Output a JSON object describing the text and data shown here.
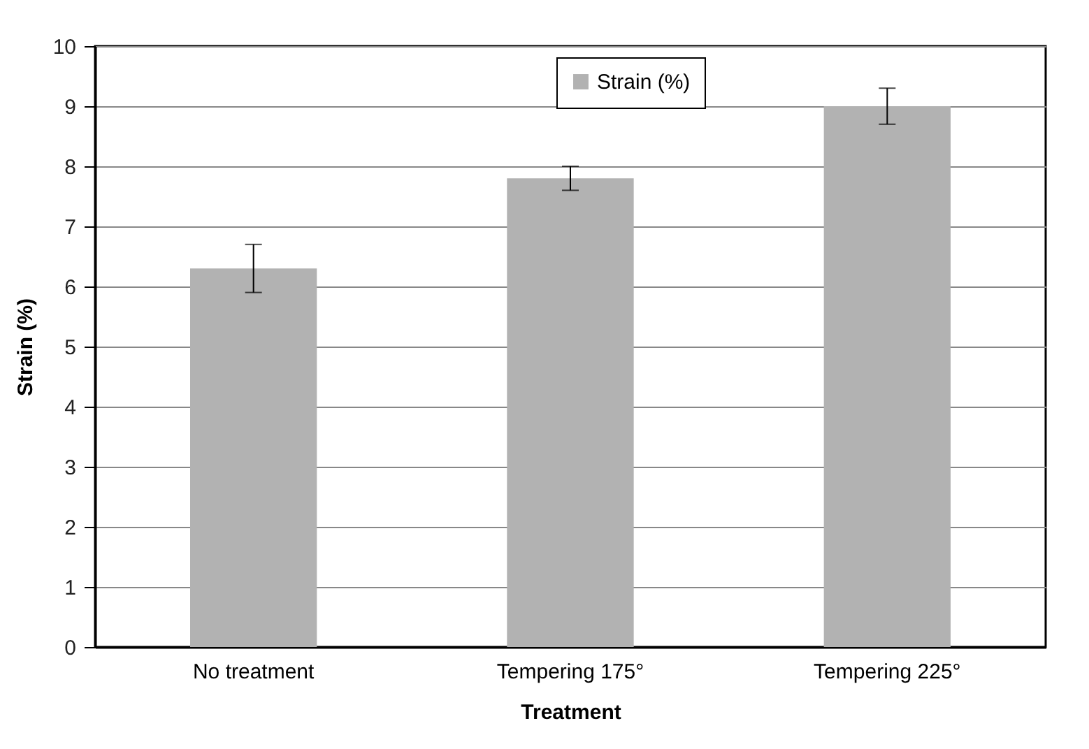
{
  "chart_data": {
    "type": "bar",
    "xlabel": "Treatment",
    "ylabel": "Strain (%)",
    "categories": [
      "No treatment",
      "Tempering 175°",
      "Tempering 225°"
    ],
    "series": [
      {
        "name": "Strain (%)",
        "color": "#b2b2b2",
        "values": [
          6.3,
          7.8,
          9.0
        ],
        "errors": [
          0.4,
          0.2,
          0.3
        ]
      }
    ],
    "ylim": [
      0,
      10
    ],
    "yticks": [
      0,
      1,
      2,
      3,
      4,
      5,
      6,
      7,
      8,
      9,
      10
    ],
    "grid": "y",
    "legend": "top"
  }
}
